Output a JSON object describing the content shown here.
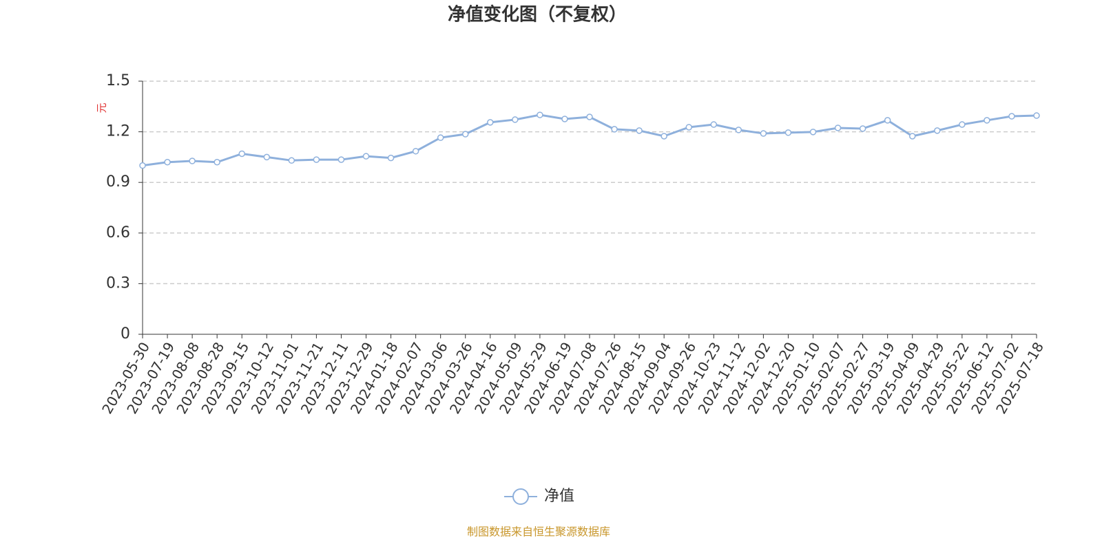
{
  "chart_data": {
    "type": "line",
    "title": "净值变化图（不复权）",
    "y_label": "元",
    "categories": [
      "2023-05-30",
      "2023-07-19",
      "2023-08-08",
      "2023-08-28",
      "2023-09-15",
      "2023-10-12",
      "2023-11-01",
      "2023-11-21",
      "2023-12-11",
      "2023-12-29",
      "2024-01-18",
      "2024-02-07",
      "2024-03-06",
      "2024-03-26",
      "2024-04-16",
      "2024-05-09",
      "2024-05-29",
      "2024-06-19",
      "2024-07-08",
      "2024-07-26",
      "2024-08-15",
      "2024-09-04",
      "2024-09-26",
      "2024-10-23",
      "2024-11-12",
      "2024-12-02",
      "2024-12-20",
      "2025-01-10",
      "2025-02-07",
      "2025-02-27",
      "2025-03-19",
      "2025-04-09",
      "2025-04-29",
      "2025-05-22",
      "2025-06-12",
      "2025-07-02",
      "2025-07-18"
    ],
    "series": [
      {
        "name": "净值",
        "color": "#8eb0dc",
        "values": [
          1.0,
          1.02,
          1.027,
          1.02,
          1.07,
          1.05,
          1.03,
          1.035,
          1.035,
          1.055,
          1.045,
          1.085,
          1.165,
          1.186,
          1.256,
          1.272,
          1.3,
          1.276,
          1.288,
          1.215,
          1.207,
          1.174,
          1.227,
          1.243,
          1.211,
          1.19,
          1.195,
          1.199,
          1.223,
          1.219,
          1.268,
          1.174,
          1.207,
          1.243,
          1.268,
          1.292,
          1.296
        ]
      }
    ],
    "ylim": [
      0,
      1.5
    ],
    "yticks": [
      0,
      0.3,
      0.6,
      0.9,
      {
        "value": 1.2,
        "label": "1.2"
      },
      1.5
    ],
    "grid": true,
    "source": "制图数据来自恒生聚源数据库"
  }
}
